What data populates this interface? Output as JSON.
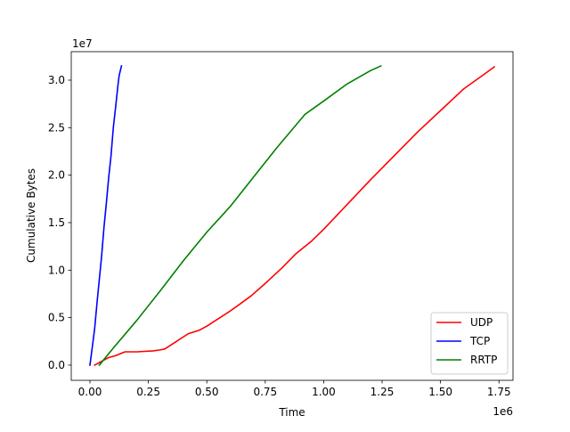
{
  "chart_data": {
    "type": "line",
    "title": "",
    "xlabel": "Time",
    "ylabel": "Cumulative Bytes",
    "x_offset_label": "1e6",
    "y_offset_label": "1e7",
    "xlim": [
      -0.08,
      1.81
    ],
    "ylim": [
      -0.16,
      3.3
    ],
    "x_ticks": [
      0.0,
      0.25,
      0.5,
      0.75,
      1.0,
      1.25,
      1.5,
      1.75
    ],
    "x_tick_labels": [
      "0.00",
      "0.25",
      "0.50",
      "0.75",
      "1.00",
      "1.25",
      "1.50",
      "1.75"
    ],
    "y_ticks": [
      0.0,
      0.5,
      1.0,
      1.5,
      2.0,
      2.5,
      3.0
    ],
    "y_tick_labels": [
      "0.0",
      "0.5",
      "1.0",
      "1.5",
      "2.0",
      "2.5",
      "3.0"
    ],
    "grid": false,
    "legend_position": "lower right",
    "series": [
      {
        "name": "UDP",
        "color": "#ff0000",
        "x": [
          0.02,
          0.05,
          0.08,
          0.11,
          0.13,
          0.15,
          0.2,
          0.27,
          0.3,
          0.32,
          0.37,
          0.42,
          0.47,
          0.5,
          0.55,
          0.6,
          0.64,
          0.69,
          0.75,
          0.82,
          0.88,
          0.95,
          1.0,
          1.1,
          1.2,
          1.3,
          1.4,
          1.5,
          1.6,
          1.68,
          1.73
        ],
        "y": [
          0.0,
          0.04,
          0.08,
          0.1,
          0.12,
          0.14,
          0.14,
          0.15,
          0.16,
          0.17,
          0.25,
          0.33,
          0.37,
          0.41,
          0.49,
          0.57,
          0.64,
          0.73,
          0.86,
          1.02,
          1.17,
          1.31,
          1.43,
          1.69,
          1.95,
          2.2,
          2.45,
          2.68,
          2.91,
          3.05,
          3.14
        ]
      },
      {
        "name": "TCP",
        "color": "#0000ff",
        "x": [
          0.0,
          0.02,
          0.03,
          0.04,
          0.05,
          0.06,
          0.07,
          0.08,
          0.09,
          0.1,
          0.11,
          0.12,
          0.125,
          0.13,
          0.135
        ],
        "y": [
          0.0,
          0.38,
          0.65,
          0.9,
          1.15,
          1.45,
          1.7,
          1.97,
          2.2,
          2.5,
          2.72,
          2.95,
          3.05,
          3.1,
          3.15
        ]
      },
      {
        "name": "RRTP",
        "color": "#008000",
        "x": [
          0.04,
          0.1,
          0.2,
          0.3,
          0.4,
          0.5,
          0.6,
          0.7,
          0.8,
          0.92,
          1.0,
          1.1,
          1.2,
          1.245
        ],
        "y": [
          0.0,
          0.18,
          0.47,
          0.78,
          1.1,
          1.4,
          1.67,
          1.98,
          2.29,
          2.64,
          2.78,
          2.96,
          3.1,
          3.15
        ]
      }
    ]
  }
}
